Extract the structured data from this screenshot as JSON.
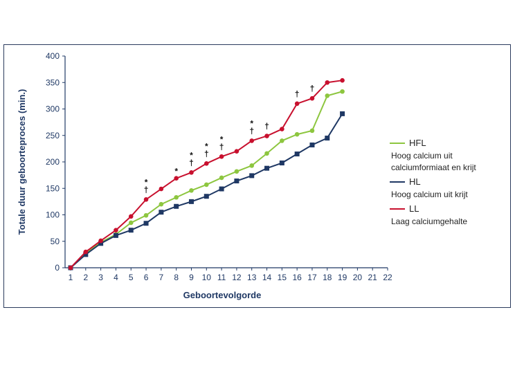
{
  "chart_data": {
    "type": "line",
    "title": "",
    "xlabel": "Geboortevolgorde",
    "ylabel": "Totale duur geboorteproces (min.)",
    "x": [
      1,
      2,
      3,
      4,
      5,
      6,
      7,
      8,
      9,
      10,
      11,
      12,
      13,
      14,
      15,
      16,
      17,
      18,
      19
    ],
    "xticks": [
      1,
      2,
      3,
      4,
      5,
      6,
      7,
      8,
      9,
      10,
      11,
      12,
      13,
      14,
      15,
      16,
      17,
      18,
      19,
      20,
      21,
      22
    ],
    "xlim": [
      1,
      22
    ],
    "ylim": [
      0,
      400
    ],
    "yticks": [
      0,
      50,
      100,
      150,
      200,
      250,
      300,
      350,
      400
    ],
    "grid": false,
    "legend_position": "right",
    "series": [
      {
        "name": "HFL",
        "description": "Hoog calcium uit calciumformiaat en krijt",
        "description_lines": [
          "Hoog calcium uit",
          "calciumformiaat en krijt"
        ],
        "color": "#8dc63f",
        "marker": "circle",
        "values": [
          0,
          27,
          48,
          63,
          85,
          99,
          120,
          133,
          146,
          157,
          170,
          182,
          193,
          216,
          240,
          252,
          259,
          325,
          333
        ]
      },
      {
        "name": "HL",
        "description": "Hoog calcium uit krijt",
        "description_lines": [
          "Hoog calcium uit krijt"
        ],
        "color": "#1f3864",
        "marker": "square",
        "values": [
          0,
          25,
          46,
          61,
          71,
          84,
          105,
          116,
          125,
          135,
          149,
          164,
          174,
          188,
          198,
          215,
          232,
          245,
          291
        ]
      },
      {
        "name": "LL",
        "description": "Laag calciumgehalte",
        "description_lines": [
          "Laag calciumgehalte"
        ],
        "color": "#c8102e",
        "marker": "circle",
        "values": [
          0,
          30,
          51,
          71,
          97,
          129,
          149,
          169,
          180,
          197,
          210,
          220,
          240,
          249,
          262,
          310,
          320,
          350,
          354
        ]
      }
    ],
    "annotations": [
      {
        "x": 6,
        "marks": [
          "*",
          "†"
        ]
      },
      {
        "x": 8,
        "marks": [
          "*"
        ]
      },
      {
        "x": 9,
        "marks": [
          "*",
          "†"
        ]
      },
      {
        "x": 10,
        "marks": [
          "*",
          "†"
        ]
      },
      {
        "x": 11,
        "marks": [
          "*",
          "†"
        ]
      },
      {
        "x": 13,
        "marks": [
          "*",
          "†"
        ]
      },
      {
        "x": 14,
        "marks": [
          "†"
        ]
      },
      {
        "x": 16,
        "marks": [
          "†"
        ]
      },
      {
        "x": 17,
        "marks": [
          "†"
        ]
      }
    ]
  }
}
